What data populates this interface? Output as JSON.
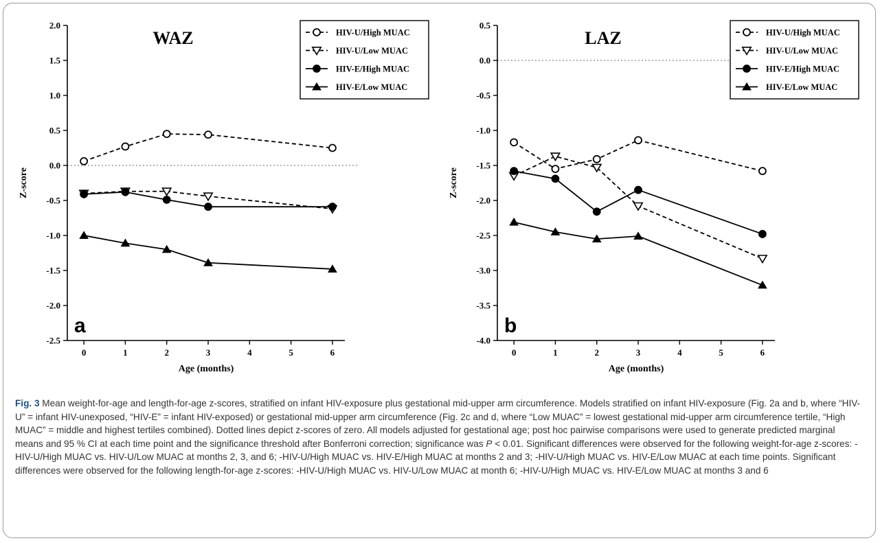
{
  "chart_data": [
    {
      "type": "line",
      "panel": "a",
      "title": "WAZ",
      "xlabel": "Age (months)",
      "ylabel": "Z-score",
      "xlim": [
        -0.4,
        6.3
      ],
      "ylim": [
        -2.5,
        2.0
      ],
      "xticks": [
        0,
        1,
        2,
        3,
        4,
        5,
        6
      ],
      "yticks": [
        2.0,
        1.5,
        1.0,
        0.5,
        0.0,
        -0.5,
        -1.0,
        -1.5,
        -2.0,
        -2.5
      ],
      "ytick_labels": [
        "2.0",
        "1.5",
        "1.0",
        "0.5",
        "0.0",
        "-0.5",
        "-1.0",
        "-1.5",
        "-2.0",
        "-2.5"
      ],
      "reference_line": 0.0,
      "legend_position": "top-right",
      "series": [
        {
          "name": "HIV-U/High MUAC",
          "marker": "open-circle",
          "line": "dashed",
          "x": [
            0,
            1,
            2,
            3,
            6
          ],
          "y": [
            0.06,
            0.27,
            0.45,
            0.44,
            0.25
          ]
        },
        {
          "name": "HIV-U/Low MUAC",
          "marker": "open-triangle-down",
          "line": "dashed",
          "x": [
            0,
            1,
            2,
            3,
            6
          ],
          "y": [
            -0.4,
            -0.37,
            -0.37,
            -0.44,
            -0.62
          ]
        },
        {
          "name": "HIV-E/High MUAC",
          "marker": "filled-circle",
          "line": "solid",
          "x": [
            0,
            1,
            2,
            3,
            6
          ],
          "y": [
            -0.41,
            -0.38,
            -0.49,
            -0.59,
            -0.59
          ]
        },
        {
          "name": "HIV-E/Low MUAC",
          "marker": "filled-triangle-up",
          "line": "solid",
          "x": [
            0,
            1,
            2,
            3,
            6
          ],
          "y": [
            -1.0,
            -1.11,
            -1.2,
            -1.39,
            -1.48
          ]
        }
      ]
    },
    {
      "type": "line",
      "panel": "b",
      "title": "LAZ",
      "xlabel": "Age (months)",
      "ylabel": "Z-score",
      "xlim": [
        -0.4,
        6.3
      ],
      "ylim": [
        -4.0,
        0.5
      ],
      "xticks": [
        0,
        1,
        2,
        3,
        4,
        5,
        6
      ],
      "yticks": [
        0.5,
        0.0,
        -0.5,
        -1.0,
        -1.5,
        -2.0,
        -2.5,
        -3.0,
        -3.5,
        -4.0
      ],
      "ytick_labels": [
        "0.5",
        "0.0",
        "-0.5",
        "-1.0",
        "-1.5",
        "-2.0",
        "-2.5",
        "-3.0",
        "-3.5",
        "-4.0"
      ],
      "reference_line": 0.0,
      "legend_position": "top-right",
      "series": [
        {
          "name": "HIV-U/High MUAC",
          "marker": "open-circle",
          "line": "dashed",
          "x": [
            0,
            1,
            2,
            3,
            6
          ],
          "y": [
            -1.17,
            -1.55,
            -1.41,
            -1.14,
            -1.58
          ]
        },
        {
          "name": "HIV-U/Low MUAC",
          "marker": "open-triangle-down",
          "line": "dashed",
          "x": [
            0,
            1,
            2,
            3,
            6
          ],
          "y": [
            -1.65,
            -1.37,
            -1.53,
            -2.08,
            -2.83
          ]
        },
        {
          "name": "HIV-E/High MUAC",
          "marker": "filled-circle",
          "line": "solid",
          "x": [
            0,
            1,
            2,
            3,
            6
          ],
          "y": [
            -1.58,
            -1.69,
            -2.16,
            -1.85,
            -2.48
          ]
        },
        {
          "name": "HIV-E/Low MUAC",
          "marker": "filled-triangle-up",
          "line": "solid",
          "x": [
            0,
            1,
            2,
            3,
            6
          ],
          "y": [
            -2.31,
            -2.45,
            -2.55,
            -2.51,
            -3.21
          ]
        }
      ]
    }
  ],
  "caption": {
    "label": "Fig. 3",
    "text_1": " Mean weight-for-age and length-for-age z-scores, stratified on infant HIV-exposure plus gestational mid-upper arm circumference. Models stratified on infant HIV-exposure (Fig. 2a and b, where “HIV-U” = infant HIV-unexposed, “HIV-E” = infant HIV-exposed) or gestational mid-upper arm circumference (Fig. 2c and d, where “Low MUAC” = lowest gestational mid-upper arm circumference tertile, “High MUAC” = middle and highest tertiles combined). Dotted lines depict z-scores of zero. All models adjusted for gestational age; post hoc pairwise comparisons were used to generate predicted marginal means and 95 % CI at each time point and the significance threshold after Bonferroni correction; significance was ",
    "p_symbol": "P",
    "text_2": " < 0.01. Significant differences were observed for the following weight-for-age z-scores: -HIV-U/High MUAC vs. HIV-U/Low MUAC at months 2, 3, and 6; -HIV-U/High MUAC vs. HIV-E/High MUAC at months 2 and 3; -HIV-U/High MUAC vs. HIV-E/Low MUAC at each time points. Significant differences were observed for the following length-for-age z-scores: -HIV-U/High MUAC vs. HIV-U/Low MUAC at month 6; -HIV-U/High MUAC vs. HIV-E/Low MUAC at months 3 and 6"
  },
  "colors": {
    "line": "#000000",
    "reference_line": "#9a9a9a",
    "frame_border": "#9a9a9a",
    "caption_label": "#1a4f8a",
    "caption_text": "#333333"
  }
}
